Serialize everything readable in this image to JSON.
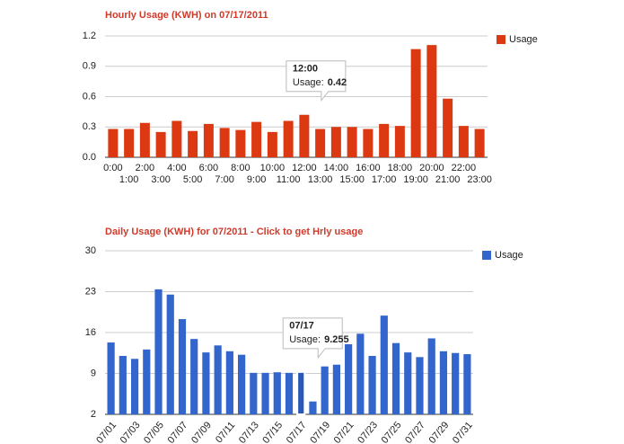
{
  "chart_data": [
    {
      "type": "bar",
      "title": "Hourly Usage (KWH) on 07/17/2011",
      "categories": [
        "0:00",
        "1:00",
        "2:00",
        "3:00",
        "4:00",
        "5:00",
        "6:00",
        "7:00",
        "8:00",
        "9:00",
        "10:00",
        "11:00",
        "12:00",
        "13:00",
        "14:00",
        "15:00",
        "16:00",
        "17:00",
        "18:00",
        "19:00",
        "20:00",
        "21:00",
        "22:00",
        "23:00"
      ],
      "series": [
        {
          "name": "Usage",
          "color": "#dc3912",
          "values": [
            0.28,
            0.28,
            0.34,
            0.25,
            0.36,
            0.26,
            0.33,
            0.29,
            0.27,
            0.35,
            0.25,
            0.36,
            0.42,
            0.28,
            0.3,
            0.3,
            0.28,
            0.33,
            0.31,
            1.07,
            1.11,
            0.58,
            0.31,
            0.28
          ]
        }
      ],
      "ylim": [
        0,
        1.2
      ],
      "yticks": [
        {
          "value": 0,
          "label": "0.0"
        },
        0.3,
        0.6,
        0.9,
        1.2
      ],
      "grid": true,
      "legend": "right",
      "tooltip": {
        "title": "12:00",
        "label": "Usage:",
        "value": 0.42
      }
    },
    {
      "type": "bar",
      "title": "Daily Usage (KWH) for 07/2011 - Click to get Hrly usage",
      "categories": [
        "07/01",
        null,
        "07/03",
        null,
        "07/05",
        null,
        "07/07",
        null,
        "07/09",
        null,
        "07/11",
        null,
        "07/13",
        null,
        "07/15",
        null,
        "07/17",
        null,
        "07/19",
        null,
        "07/21",
        null,
        "07/23",
        null,
        "07/25",
        null,
        "07/27",
        null,
        "07/29",
        null,
        "07/31"
      ],
      "series": [
        {
          "name": "Usage",
          "color": "#3366cc",
          "values": [
            14.3,
            12.0,
            11.5,
            13.1,
            23.4,
            22.5,
            18.3,
            14.9,
            12.6,
            13.8,
            12.8,
            12.2,
            9.1,
            9.1,
            9.2,
            9.1,
            9.255,
            4.2,
            10.2,
            10.5,
            14.0,
            15.8,
            12.0,
            18.9,
            14.2,
            12.6,
            11.8,
            15.0,
            12.8,
            12.5,
            12.3
          ]
        }
      ],
      "ylim": [
        2,
        30
      ],
      "yticks": [
        2,
        9,
        16,
        23,
        30
      ],
      "grid": true,
      "legend": "right",
      "tooltip": {
        "title": "07/17",
        "label": "Usage:",
        "value": 9.255
      }
    }
  ]
}
